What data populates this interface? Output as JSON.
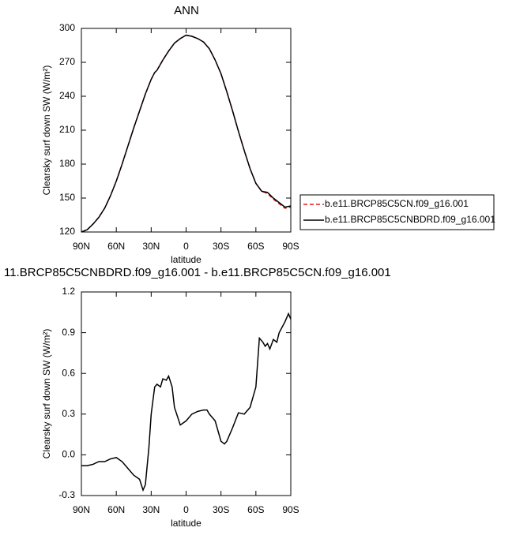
{
  "chart_data": [
    {
      "type": "line",
      "title": "ANN",
      "xlabel": "latitude",
      "ylabel": "Clearsky surf down SW (W/m²)",
      "x": [
        90,
        85,
        80,
        75,
        70,
        65,
        60,
        55,
        50,
        45,
        40,
        35,
        30,
        27,
        25,
        20,
        15,
        10,
        5,
        0,
        -5,
        -10,
        -15,
        -20,
        -25,
        -30,
        -35,
        -40,
        -45,
        -50,
        -55,
        -60,
        -65,
        -70,
        -75,
        -80,
        -85,
        -90
      ],
      "series": [
        {
          "name": "b.e11.BRCP85C5CN.f09_g16.001",
          "color": "#e31a1c",
          "dash": "dashed",
          "values": [
            120,
            122,
            127,
            133,
            141,
            152,
            165,
            180,
            196,
            212,
            227,
            242,
            255,
            261,
            263,
            272,
            280,
            287,
            291,
            294,
            293,
            291,
            288,
            282,
            272,
            260,
            244,
            227,
            209,
            192,
            176,
            163,
            156,
            154,
            149,
            145,
            141,
            142
          ]
        },
        {
          "name": "b.e11.BRCP85C5CNBDRD.f09_g16.001",
          "color": "#000000",
          "dash": "solid",
          "values": [
            120,
            122,
            127,
            133,
            141,
            152,
            165,
            180,
            196,
            212,
            227,
            242,
            255,
            261,
            263,
            272,
            280,
            287,
            291,
            294,
            293,
            291,
            288,
            282,
            272,
            260,
            244,
            227,
            209,
            192,
            176,
            163,
            156,
            155,
            150,
            146,
            142,
            143
          ]
        }
      ],
      "xlim": [
        90,
        -90
      ],
      "xticks": [
        {
          "value": 90,
          "label": "90N"
        },
        {
          "value": 60,
          "label": "60N"
        },
        {
          "value": 30,
          "label": "30N"
        },
        0,
        {
          "value": -30,
          "label": "30S"
        },
        {
          "value": -60,
          "label": "60S"
        },
        {
          "value": -90,
          "label": "90S"
        }
      ],
      "ylim": [
        120,
        300
      ],
      "yticks": [
        120,
        150,
        180,
        210,
        240,
        270,
        300
      ],
      "legend": "right"
    },
    {
      "type": "line",
      "title": "11.BRCP85C5CNBDRD.f09_g16.001 - b.e11.BRCP85C5CN.f09_g16.001",
      "xlabel": "latitude",
      "ylabel": "Clearsky surf down SW (W/m²)",
      "x": [
        90,
        85,
        80,
        75,
        70,
        65,
        60,
        55,
        50,
        45,
        40,
        37,
        35,
        32,
        30,
        27,
        25,
        22,
        20,
        17,
        15,
        12,
        10,
        5,
        0,
        -5,
        -10,
        -15,
        -18,
        -20,
        -25,
        -30,
        -33,
        -35,
        -40,
        -45,
        -50,
        -55,
        -60,
        -63,
        -66,
        -68,
        -70,
        -72,
        -75,
        -78,
        -80,
        -85,
        -88,
        -90
      ],
      "series": [
        {
          "color": "#000000",
          "dash": "solid",
          "values": [
            -0.08,
            -0.08,
            -0.07,
            -0.05,
            -0.05,
            -0.03,
            -0.02,
            -0.05,
            -0.1,
            -0.15,
            -0.18,
            -0.26,
            -0.22,
            0.05,
            0.3,
            0.5,
            0.52,
            0.5,
            0.56,
            0.55,
            0.58,
            0.5,
            0.35,
            0.22,
            0.25,
            0.3,
            0.32,
            0.33,
            0.33,
            0.3,
            0.25,
            0.1,
            0.08,
            0.1,
            0.2,
            0.31,
            0.3,
            0.35,
            0.5,
            0.86,
            0.83,
            0.8,
            0.82,
            0.78,
            0.85,
            0.83,
            0.9,
            0.98,
            1.04,
            1.0
          ]
        }
      ],
      "xlim": [
        90,
        -90
      ],
      "xticks": [
        {
          "value": 90,
          "label": "90N"
        },
        {
          "value": 60,
          "label": "60N"
        },
        {
          "value": 30,
          "label": "30N"
        },
        0,
        {
          "value": -30,
          "label": "30S"
        },
        {
          "value": -60,
          "label": "60S"
        },
        {
          "value": -90,
          "label": "90S"
        }
      ],
      "ylim": [
        -0.3,
        1.2
      ],
      "yticks": [
        -0.3,
        {
          "value": 0,
          "label": "0.0"
        },
        0.3,
        0.6,
        0.9,
        1.2
      ]
    }
  ]
}
